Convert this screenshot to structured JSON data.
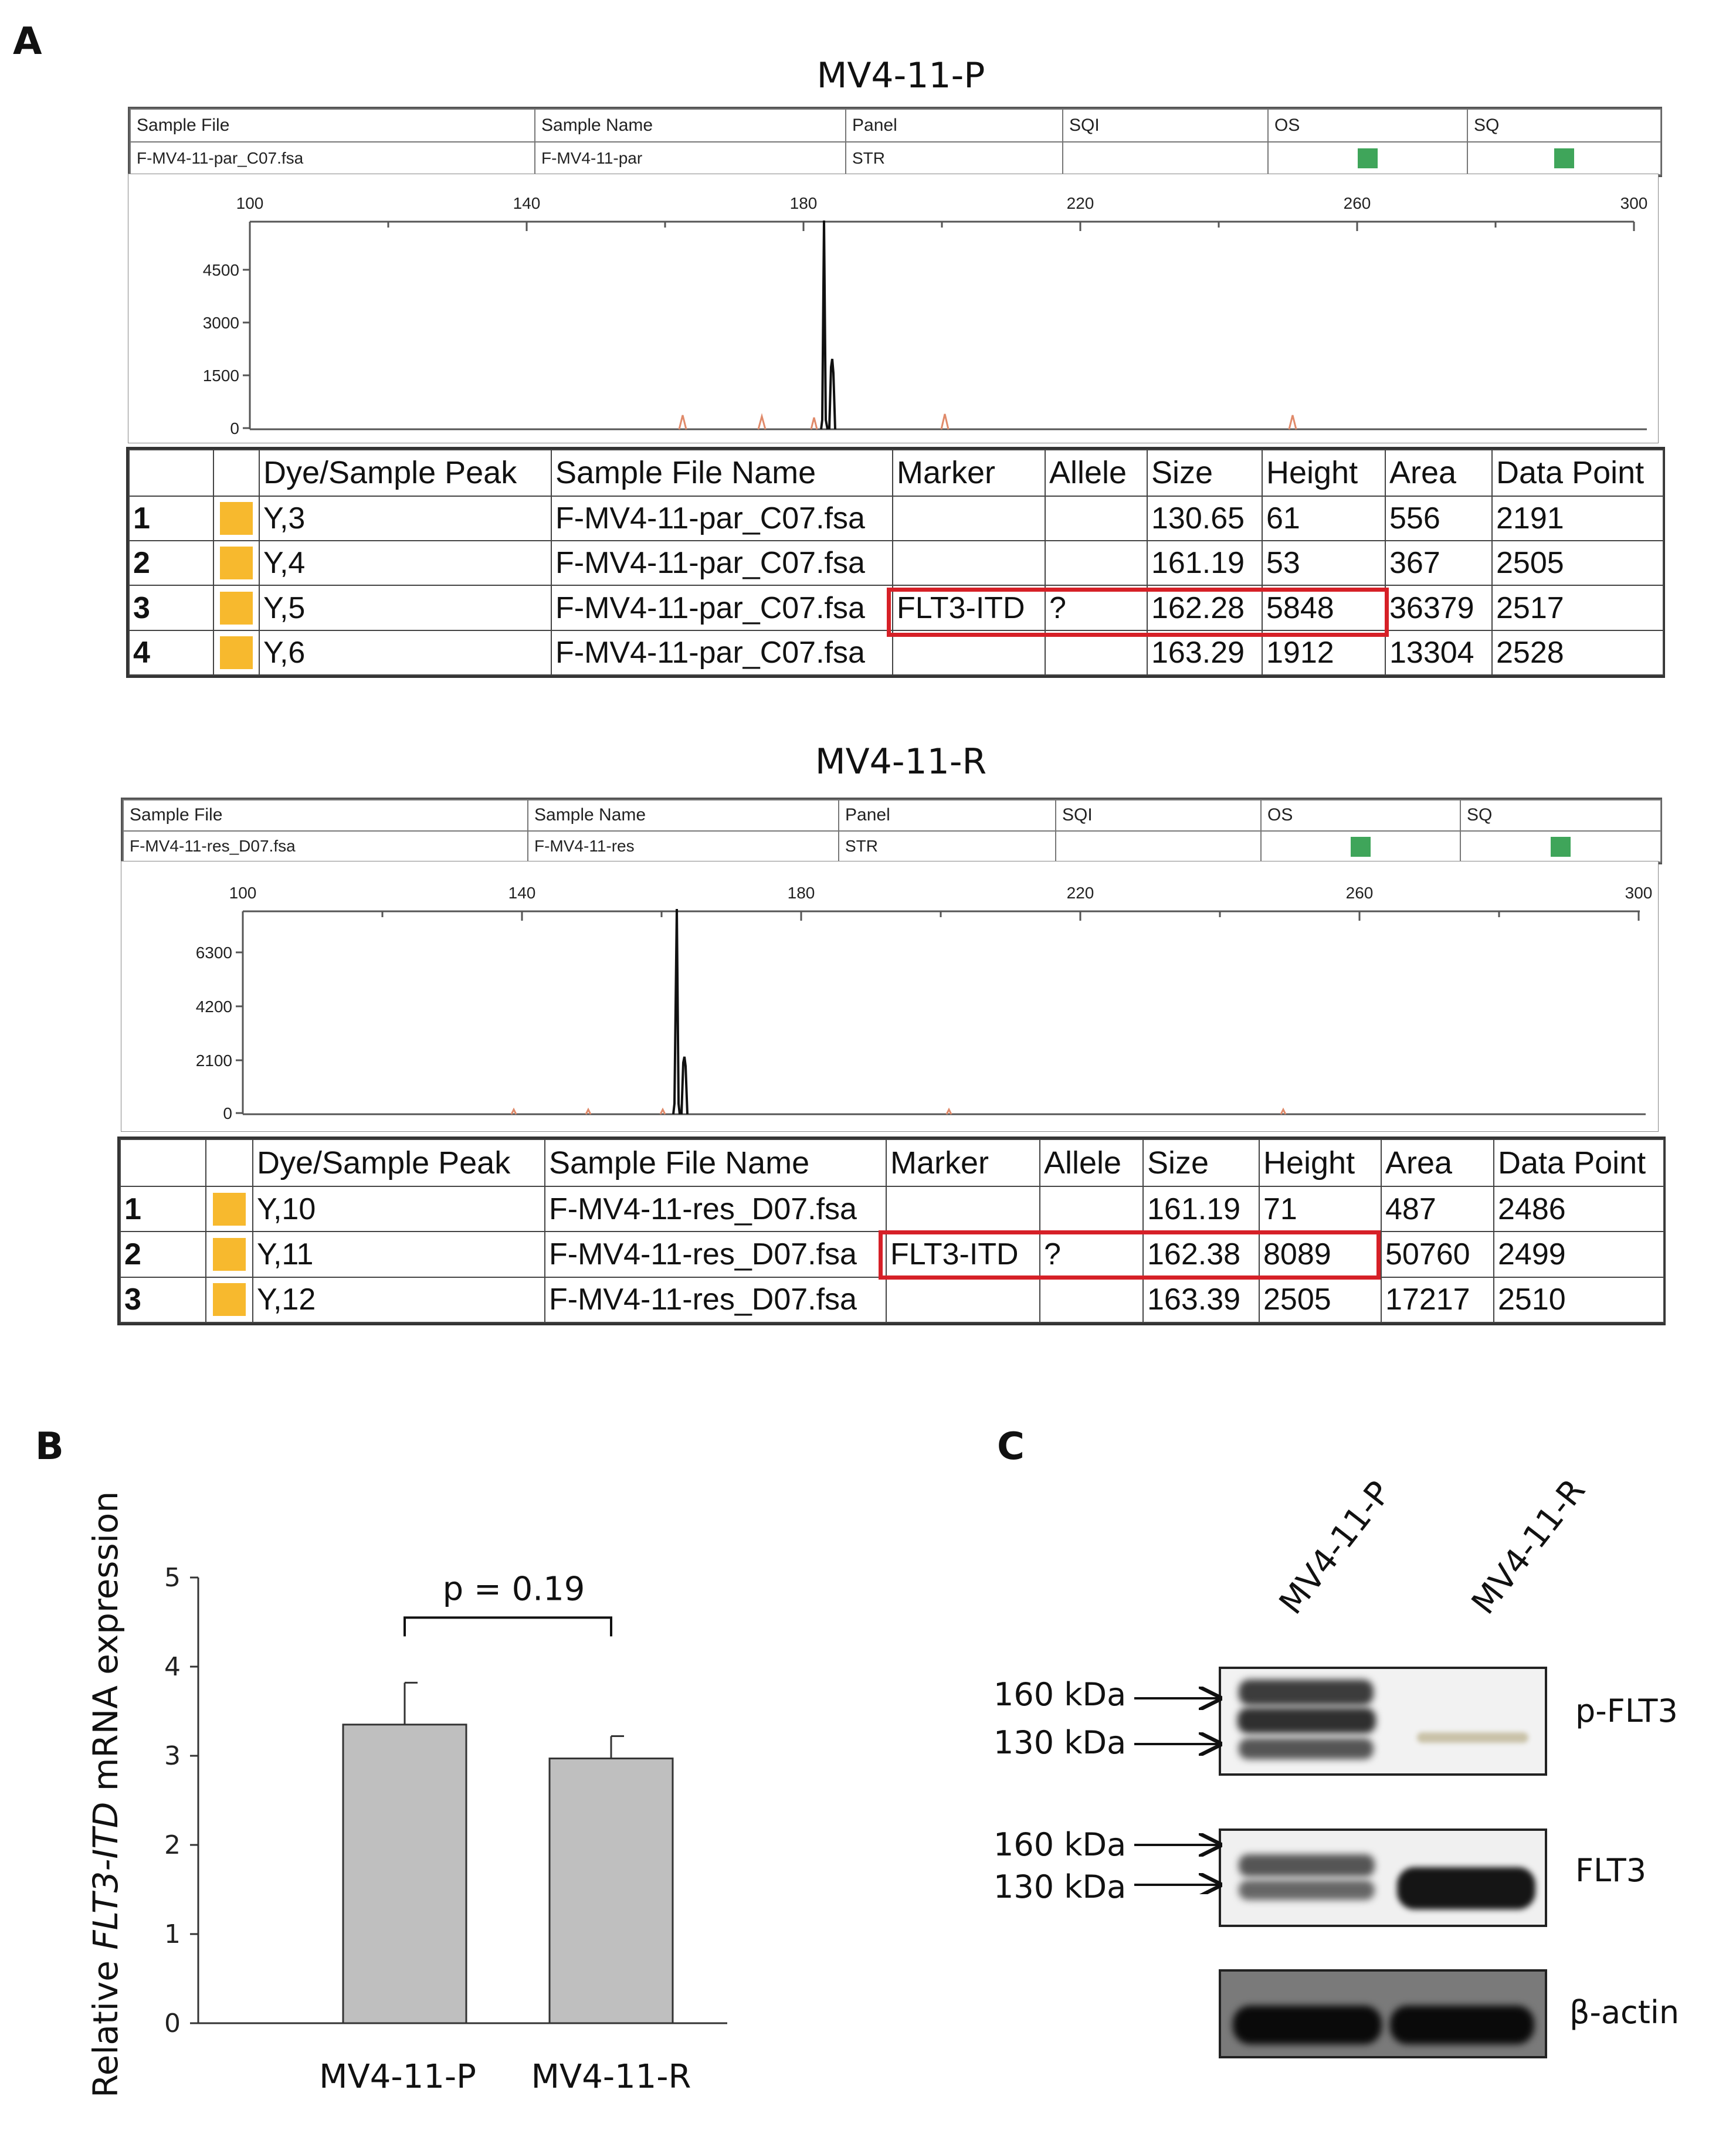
{
  "panelA": {
    "letter": "A",
    "header_cols": [
      "Sample File",
      "Sample Name",
      "Panel",
      "SQI",
      "OS",
      "SQ"
    ],
    "samples": [
      {
        "title": "MV4-11-P",
        "header_values": [
          "F-MV4-11-par_C07.fsa",
          "F-MV4-11-par",
          "STR"
        ],
        "x_ticks": [
          "100",
          "140",
          "180",
          "220",
          "260",
          "300"
        ],
        "y_ticks": [
          "4500",
          "3000",
          "1500",
          "0"
        ],
        "peak_cols": [
          "",
          "",
          "Dye/Sample Peak",
          "Sample File Name",
          "Marker",
          "Allele",
          "Size",
          "Height",
          "Area",
          "Data Point"
        ],
        "rows": [
          {
            "n": "1",
            "peak": "Y,3",
            "file": "F-MV4-11-par_C07.fsa",
            "marker": "",
            "allele": "",
            "size": "130.65",
            "height": "61",
            "area": "556",
            "dp": "2191"
          },
          {
            "n": "2",
            "peak": "Y,4",
            "file": "F-MV4-11-par_C07.fsa",
            "marker": "",
            "allele": "",
            "size": "161.19",
            "height": "53",
            "area": "367",
            "dp": "2505"
          },
          {
            "n": "3",
            "peak": "Y,5",
            "file": "F-MV4-11-par_C07.fsa",
            "marker": "FLT3-ITD",
            "allele": "?",
            "size": "162.28",
            "height": "5848",
            "area": "36379",
            "dp": "2517"
          },
          {
            "n": "4",
            "peak": "Y,6",
            "file": "F-MV4-11-par_C07.fsa",
            "marker": "",
            "allele": "",
            "size": "163.29",
            "height": "1912",
            "area": "13304",
            "dp": "2528"
          }
        ]
      },
      {
        "title": "MV4-11-R",
        "header_values": [
          "F-MV4-11-res_D07.fsa",
          "F-MV4-11-res",
          "STR"
        ],
        "x_ticks": [
          "100",
          "140",
          "180",
          "220",
          "260",
          "300"
        ],
        "y_ticks": [
          "6300",
          "4200",
          "2100",
          "0"
        ],
        "peak_cols": [
          "",
          "",
          "Dye/Sample Peak",
          "Sample File Name",
          "Marker",
          "Allele",
          "Size",
          "Height",
          "Area",
          "Data Point"
        ],
        "rows": [
          {
            "n": "1",
            "peak": "Y,10",
            "file": "F-MV4-11-res_D07.fsa",
            "marker": "",
            "allele": "",
            "size": "161.19",
            "height": "71",
            "area": "487",
            "dp": "2486"
          },
          {
            "n": "2",
            "peak": "Y,11",
            "file": "F-MV4-11-res_D07.fsa",
            "marker": "FLT3-ITD",
            "allele": "?",
            "size": "162.38",
            "height": "8089",
            "area": "50760",
            "dp": "2499"
          },
          {
            "n": "3",
            "peak": "Y,12",
            "file": "F-MV4-11-res_D07.fsa",
            "marker": "",
            "allele": "",
            "size": "163.39",
            "height": "2505",
            "area": "17217",
            "dp": "2510"
          }
        ]
      }
    ]
  },
  "panelB": {
    "letter": "B"
  },
  "panelC": {
    "letter": "C",
    "lanes": [
      "MV4-11-P",
      "MV4-11-R"
    ],
    "blots": [
      {
        "name": "p-FLT3",
        "markers": [
          "160 kDa",
          "130 kDa"
        ]
      },
      {
        "name": "FLT3",
        "markers": [
          "160 kDa",
          "130 kDa"
        ]
      },
      {
        "name": "β-actin",
        "markers": []
      }
    ]
  },
  "chart_data": {
    "type": "bar",
    "categories": [
      "MV4-11-P",
      "MV4-11-R"
    ],
    "values": [
      3.35,
      2.97
    ],
    "errors": [
      0.47,
      0.25
    ],
    "ylabel_prefix": "Relative ",
    "ylabel_italic": "FLT3-ITD",
    "ylabel_suffix": " mRNA expression",
    "ylim": [
      0,
      5
    ],
    "yticks": [
      "0",
      "1",
      "2",
      "3",
      "4",
      "5"
    ],
    "annotation": "p = 0.19",
    "bar_color": "#bfbfbf"
  }
}
